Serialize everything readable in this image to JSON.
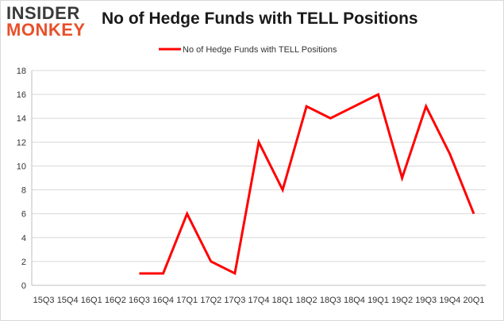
{
  "logo": {
    "line1": "INSIDER",
    "line2": "MONKEY"
  },
  "colors": {
    "series": "#ff0000",
    "grid": "#d9d9d9",
    "logo_dark": "#3a3a3a",
    "logo_accent": "#e8502a"
  },
  "chart_data": {
    "type": "line",
    "title": "No of Hedge Funds with TELL Positions",
    "xlabel": "",
    "ylabel": "",
    "ylim": [
      0,
      18
    ],
    "yticks": [
      0,
      2,
      4,
      6,
      8,
      10,
      12,
      14,
      16,
      18
    ],
    "grid": true,
    "legend": "top-center",
    "categories": [
      "15Q3",
      "15Q4",
      "16Q1",
      "16Q2",
      "16Q3",
      "16Q4",
      "17Q1",
      "17Q2",
      "17Q3",
      "17Q4",
      "18Q1",
      "18Q2",
      "18Q3",
      "18Q4",
      "19Q1",
      "19Q2",
      "19Q3",
      "19Q4",
      "20Q1"
    ],
    "series": [
      {
        "name": "No of Hedge Funds with TELL Positions",
        "values": [
          null,
          null,
          null,
          null,
          1,
          1,
          6,
          2,
          1,
          12,
          8,
          15,
          14,
          15,
          16,
          9,
          15,
          11,
          6
        ]
      }
    ]
  }
}
